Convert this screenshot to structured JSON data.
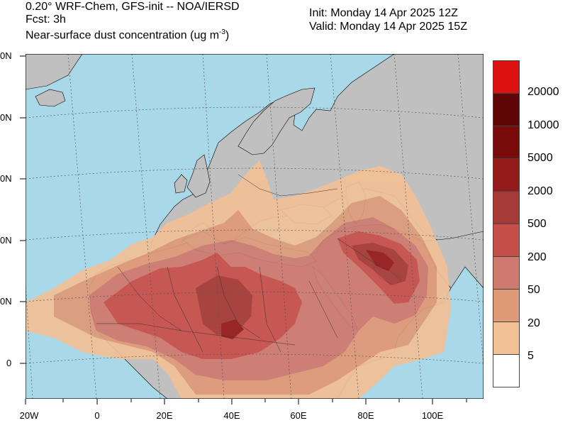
{
  "header": {
    "title_line1": "0.20° WRF-Chem, GFS-init -- NOA/IERSD",
    "title_line2": "Fcst: 3h",
    "title_line3_main": "Near-surface dust concentration (ug m",
    "title_line3_sup": "-3",
    "title_line3_close": ")",
    "init": "Init: Monday 14 Apr 2025  12Z",
    "valid": "Valid: Monday 14 Apr 2025  15Z"
  },
  "map": {
    "lat_labels": [
      "0N",
      "0N",
      "0N",
      "0N",
      "0N",
      "0"
    ],
    "lon_labels": [
      "20W",
      "0",
      "20E",
      "40E",
      "60E",
      "80E",
      "100E"
    ],
    "ocean_color": "#a9d8e8",
    "land_color": "#c0c0c0"
  },
  "colorbar": {
    "colors": [
      "#dd1111",
      "#5e0606",
      "#7a0b0b",
      "#951a1a",
      "#a63a36",
      "#c74f4a",
      "#cf7a6f",
      "#df9a78",
      "#f2c196",
      "#ffffff"
    ],
    "labels": [
      "20000",
      "10000",
      "5000",
      "2000",
      "500",
      "200",
      "50",
      "20",
      "5"
    ]
  }
}
